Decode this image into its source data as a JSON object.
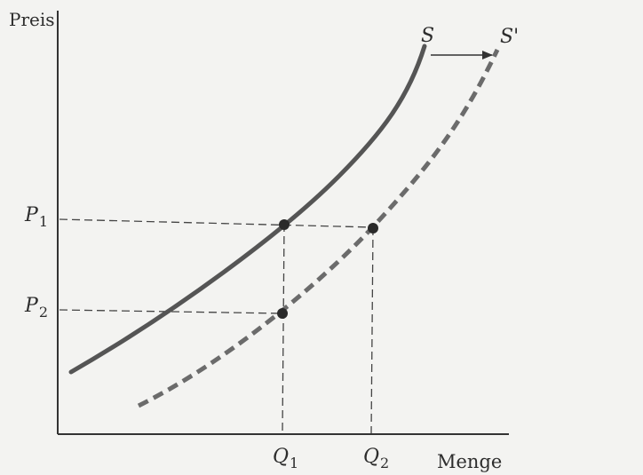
{
  "axes": {
    "y_label": "Preis",
    "x_label": "Menge"
  },
  "curves": {
    "s_label": "S",
    "s_prime_label": "S'"
  },
  "prices": {
    "p1": {
      "main": "P",
      "sub": "1"
    },
    "p2": {
      "main": "P",
      "sub": "2"
    }
  },
  "quantities": {
    "q1": {
      "main": "Q",
      "sub": "1"
    },
    "q2": {
      "main": "Q",
      "sub": "2"
    }
  },
  "colors": {
    "curve": "#555555",
    "axis": "#333333",
    "guide": "#444444",
    "point": "#2a2a2a",
    "text": "#2d2d2d",
    "background": "#f3f3f1"
  }
}
